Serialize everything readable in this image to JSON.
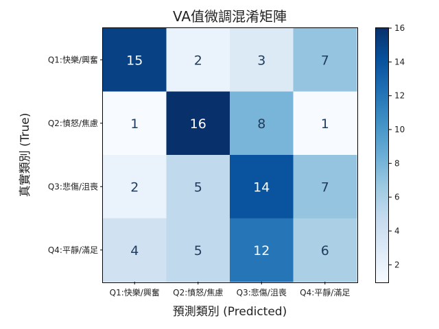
{
  "chart_data": {
    "type": "heatmap",
    "title": "VA值微調混淆矩陣",
    "xlabel": "預測類別 (Predicted)",
    "ylabel": "真實類別 (True)",
    "x_categories": [
      "Q1:快樂/興奮",
      "Q2:憤怒/焦慮",
      "Q3:悲傷/沮喪",
      "Q4:平靜/滿足"
    ],
    "y_categories": [
      "Q1:快樂/興奮",
      "Q2:憤怒/焦慮",
      "Q3:悲傷/沮喪",
      "Q4:平靜/滿足"
    ],
    "matrix": [
      [
        15,
        2,
        3,
        7
      ],
      [
        1,
        16,
        8,
        1
      ],
      [
        2,
        5,
        14,
        7
      ],
      [
        4,
        5,
        12,
        6
      ]
    ],
    "colormap": "Blues",
    "vmin": 1,
    "vmax": 16,
    "colorbar_ticks": [
      2,
      4,
      6,
      8,
      10,
      12,
      14,
      16
    ],
    "grid": false,
    "colors": {
      "low": "#f7fbff",
      "high": "#08306b"
    }
  }
}
